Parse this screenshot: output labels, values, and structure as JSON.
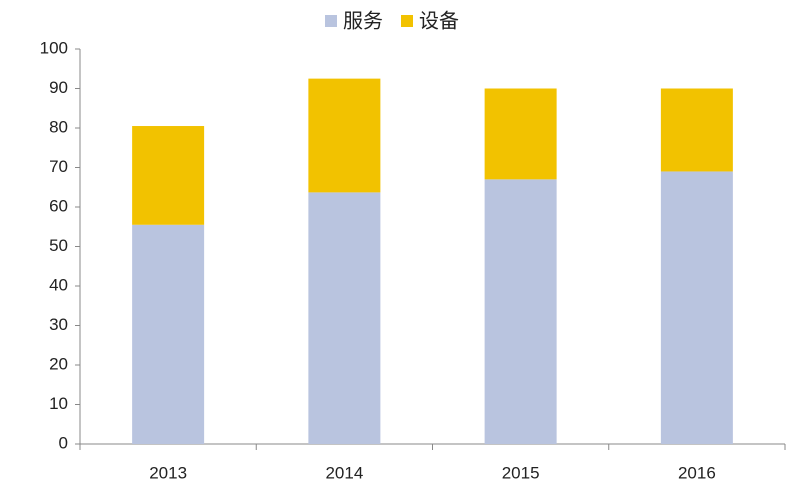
{
  "chart_data": {
    "type": "stacked-bar",
    "categories": [
      "2013",
      "2014",
      "2015",
      "2016"
    ],
    "series": [
      {
        "name": "服务",
        "color": "#b9c4df",
        "values": [
          55.5,
          63.7,
          67,
          69
        ]
      },
      {
        "name": "设备",
        "color": "#f2c200",
        "values": [
          25,
          28.8,
          23,
          21
        ]
      }
    ],
    "ylim": [
      0,
      100
    ],
    "yticks": [
      0,
      10,
      20,
      30,
      40,
      50,
      60,
      70,
      80,
      90,
      100
    ],
    "grid": false,
    "legend": "top"
  }
}
